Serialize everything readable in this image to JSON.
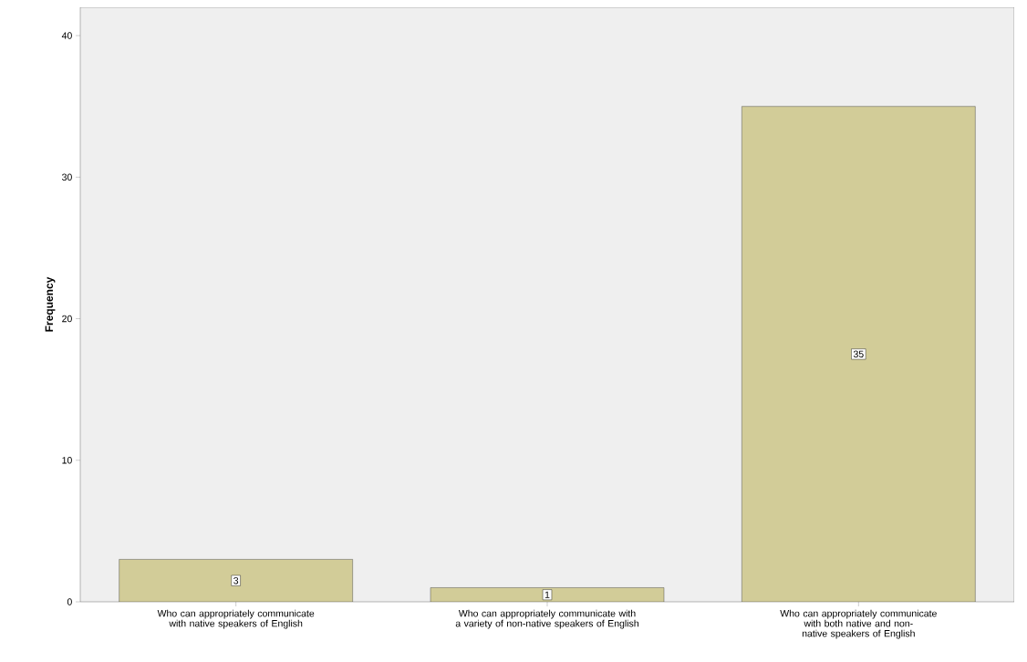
{
  "chart_data": {
    "type": "bar",
    "ylabel": "Frequency",
    "categories": [
      "Who can appropriately communicate with native speakers of English",
      "Who can appropriately communicate with a variety of non-native speakers of English",
      "Who can appropriately communicate with both native and non-native speakers of English"
    ],
    "values": [
      3,
      1,
      35
    ],
    "color": "#d2cc98",
    "ylim": [
      0,
      42
    ],
    "yticks": [
      0,
      10,
      20,
      30,
      40
    ],
    "data_labels": true
  }
}
